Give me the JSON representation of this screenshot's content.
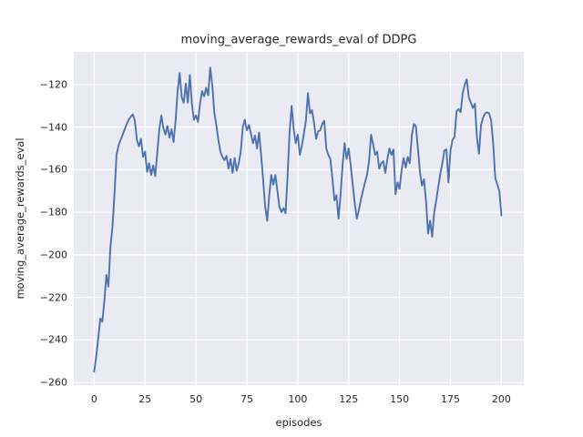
{
  "chart": {
    "title": "moving_average_rewards_eval of DDPG",
    "xlabel": "episodes",
    "ylabel": "moving_average_rewards_eval"
  },
  "chart_data": {
    "type": "line",
    "title": "moving_average_rewards_eval of DDPG",
    "xlabel": "episodes",
    "ylabel": "moving_average_rewards_eval",
    "x_start": 0,
    "x_step": 1,
    "x_ticks": [
      0,
      25,
      50,
      75,
      100,
      125,
      150,
      175,
      200
    ],
    "y_ticks": [
      -120,
      -140,
      -160,
      -180,
      -200,
      -220,
      -240,
      -260
    ],
    "xlim": [
      -10,
      211
    ],
    "ylim": [
      -261.3,
      -104.6
    ],
    "grid": true,
    "legend_position": "none",
    "style": "seaborn-darkgrid",
    "colors": {
      "line": "#4C72B0",
      "axes_background": "#EAEAF2",
      "grid": "#FFFFFF",
      "figure_background": "#FFFFFF",
      "text": "#262626"
    },
    "series": [
      {
        "name": "moving_average_rewards_eval",
        "color": "#4C72B0",
        "values": [
          -255,
          -248,
          -239.5,
          -230,
          -231.5,
          -222,
          -209.5,
          -215,
          -196,
          -187,
          -171,
          -153,
          -148.5,
          -146,
          -143.5,
          -141,
          -138.5,
          -136.5,
          -135,
          -134,
          -137,
          -146,
          -149,
          -145.5,
          -154,
          -151.5,
          -161,
          -157,
          -162.5,
          -158,
          -163,
          -152,
          -141,
          -134.5,
          -140.5,
          -143.5,
          -139.5,
          -145,
          -141,
          -147,
          -137,
          -123,
          -114.5,
          -126,
          -128.5,
          -119.5,
          -128.5,
          -115.5,
          -129,
          -136.5,
          -134.5,
          -137.5,
          -129,
          -123,
          -125.5,
          -121.5,
          -125,
          -112,
          -120,
          -133,
          -139,
          -146,
          -151.5,
          -154,
          -155.5,
          -153.5,
          -159.5,
          -155,
          -161.5,
          -154.5,
          -160.5,
          -157,
          -151.5,
          -140,
          -136.5,
          -141.5,
          -139,
          -143,
          -147.5,
          -144,
          -150,
          -142.5,
          -153,
          -165,
          -177.5,
          -184,
          -172,
          -162.5,
          -167,
          -162.5,
          -170,
          -177.5,
          -180,
          -178,
          -180.5,
          -163,
          -142,
          -130,
          -141,
          -147.5,
          -143.5,
          -153,
          -149,
          -143,
          -137,
          -124,
          -133.5,
          -132,
          -138,
          -145.5,
          -142,
          -141.5,
          -138.5,
          -137,
          -150,
          -153,
          -155,
          -164,
          -174.5,
          -172,
          -183,
          -172,
          -158,
          -147.5,
          -155,
          -150,
          -158,
          -167,
          -176,
          -183,
          -179,
          -174,
          -170,
          -166,
          -162.5,
          -156,
          -143.5,
          -148,
          -153,
          -151.5,
          -159.5,
          -157,
          -156,
          -161.5,
          -155,
          -150,
          -153,
          -150.5,
          -171.5,
          -166,
          -169,
          -160,
          -154.5,
          -159,
          -154,
          -157,
          -144,
          -138.5,
          -139.5,
          -150,
          -161,
          -167.5,
          -164.5,
          -175,
          -190,
          -184,
          -191.5,
          -180,
          -174.5,
          -168,
          -162,
          -157,
          -151,
          -150.5,
          -166,
          -151,
          -146,
          -144.5,
          -132.5,
          -131.5,
          -133,
          -124,
          -120,
          -117.5,
          -126,
          -128.5,
          -131,
          -129,
          -145,
          -152.5,
          -139,
          -135.5,
          -133.5,
          -133,
          -133.5,
          -137,
          -148,
          -164,
          -167,
          -170,
          -181.5
        ]
      }
    ]
  }
}
